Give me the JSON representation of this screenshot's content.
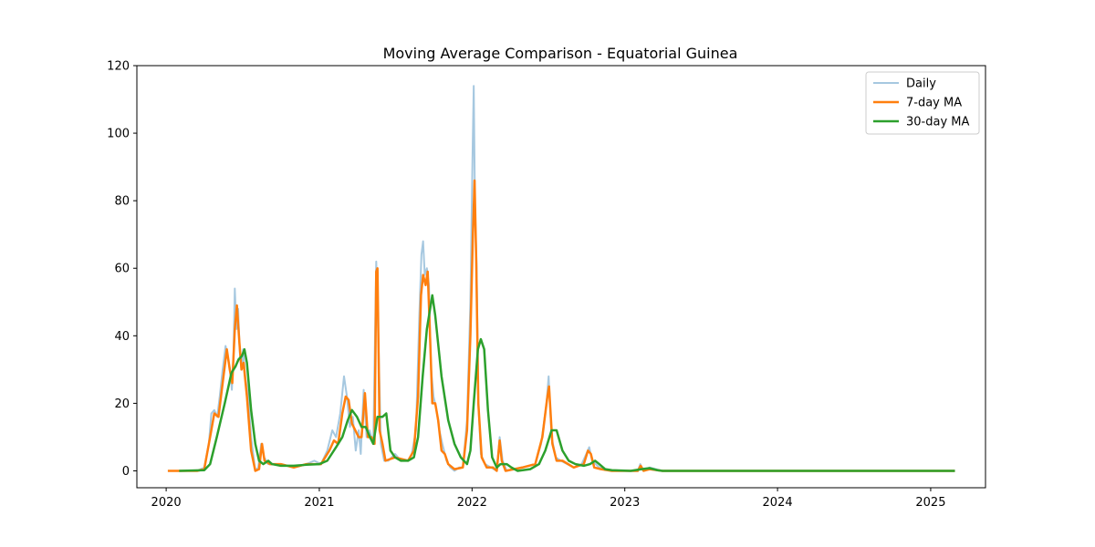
{
  "chart_data": {
    "type": "line",
    "title": "Moving Average Comparison - Equatorial Guinea",
    "xlabel": "",
    "ylabel": "",
    "xlim": [
      "2019-10-23",
      "2025-05-12"
    ],
    "ylim": [
      -5,
      120
    ],
    "x_ticks": [
      "2020",
      "2021",
      "2022",
      "2023",
      "2024",
      "2025"
    ],
    "y_ticks": [
      0,
      20,
      40,
      60,
      80,
      100,
      120
    ],
    "grid": false,
    "legend": {
      "position": "top-right",
      "entries": [
        "Daily",
        "7-day MA",
        "30-day MA"
      ]
    },
    "series": [
      {
        "name": "Daily",
        "color": "#a6c8e0",
        "points": [
          [
            "2020-01-05",
            0
          ],
          [
            "2020-03-15",
            0
          ],
          [
            "2020-04-01",
            1
          ],
          [
            "2020-04-12",
            8
          ],
          [
            "2020-04-18",
            17
          ],
          [
            "2020-04-25",
            18
          ],
          [
            "2020-05-02",
            16
          ],
          [
            "2020-05-08",
            22
          ],
          [
            "2020-05-15",
            30
          ],
          [
            "2020-05-22",
            37
          ],
          [
            "2020-05-28",
            33
          ],
          [
            "2020-06-02",
            30
          ],
          [
            "2020-06-06",
            24
          ],
          [
            "2020-06-10",
            35
          ],
          [
            "2020-06-13",
            54
          ],
          [
            "2020-06-17",
            42
          ],
          [
            "2020-06-21",
            48
          ],
          [
            "2020-06-25",
            35
          ],
          [
            "2020-06-29",
            30
          ],
          [
            "2020-07-03",
            36
          ],
          [
            "2020-07-08",
            28
          ],
          [
            "2020-07-15",
            22
          ],
          [
            "2020-07-22",
            10
          ],
          [
            "2020-08-01",
            0
          ],
          [
            "2020-08-08",
            1
          ],
          [
            "2020-08-15",
            8
          ],
          [
            "2020-08-22",
            4
          ],
          [
            "2020-09-01",
            2
          ],
          [
            "2020-10-01",
            2
          ],
          [
            "2020-11-01",
            1
          ],
          [
            "2020-12-01",
            2
          ],
          [
            "2020-12-20",
            3
          ],
          [
            "2021-01-05",
            2
          ],
          [
            "2021-01-20",
            6
          ],
          [
            "2021-02-01",
            12
          ],
          [
            "2021-02-10",
            10
          ],
          [
            "2021-02-20",
            17
          ],
          [
            "2021-03-01",
            28
          ],
          [
            "2021-03-08",
            22
          ],
          [
            "2021-03-15",
            13
          ],
          [
            "2021-03-22",
            16
          ],
          [
            "2021-03-29",
            6
          ],
          [
            "2021-04-05",
            12
          ],
          [
            "2021-04-10",
            5
          ],
          [
            "2021-04-17",
            24
          ],
          [
            "2021-04-24",
            10
          ],
          [
            "2021-05-01",
            12
          ],
          [
            "2021-05-10",
            8
          ],
          [
            "2021-05-17",
            62
          ],
          [
            "2021-05-22",
            40
          ],
          [
            "2021-05-28",
            8
          ],
          [
            "2021-06-05",
            3
          ],
          [
            "2021-06-15",
            3
          ],
          [
            "2021-07-01",
            5
          ],
          [
            "2021-07-15",
            3
          ],
          [
            "2021-08-01",
            3
          ],
          [
            "2021-08-10",
            5
          ],
          [
            "2021-08-20",
            12
          ],
          [
            "2021-08-28",
            46
          ],
          [
            "2021-09-02",
            64
          ],
          [
            "2021-09-06",
            68
          ],
          [
            "2021-09-10",
            58
          ],
          [
            "2021-09-15",
            60
          ],
          [
            "2021-09-20",
            55
          ],
          [
            "2021-09-25",
            30
          ],
          [
            "2021-10-01",
            22
          ],
          [
            "2021-10-08",
            18
          ],
          [
            "2021-10-15",
            12
          ],
          [
            "2021-10-22",
            8
          ],
          [
            "2021-11-01",
            3
          ],
          [
            "2021-11-10",
            1
          ],
          [
            "2021-11-20",
            0
          ],
          [
            "2021-12-01",
            1
          ],
          [
            "2021-12-10",
            1
          ],
          [
            "2021-12-20",
            15
          ],
          [
            "2021-12-28",
            50
          ],
          [
            "2022-01-02",
            92
          ],
          [
            "2022-01-05",
            114
          ],
          [
            "2022-01-08",
            78
          ],
          [
            "2022-01-12",
            60
          ],
          [
            "2022-01-16",
            20
          ],
          [
            "2022-01-22",
            5
          ],
          [
            "2022-02-01",
            2
          ],
          [
            "2022-02-15",
            1
          ],
          [
            "2022-03-01",
            0
          ],
          [
            "2022-03-08",
            10
          ],
          [
            "2022-03-15",
            3
          ],
          [
            "2022-03-25",
            0
          ],
          [
            "2022-05-01",
            1
          ],
          [
            "2022-06-01",
            2
          ],
          [
            "2022-06-15",
            8
          ],
          [
            "2022-06-28",
            20
          ],
          [
            "2022-07-03",
            28
          ],
          [
            "2022-07-10",
            10
          ],
          [
            "2022-07-20",
            4
          ],
          [
            "2022-08-01",
            3
          ],
          [
            "2022-09-01",
            1
          ],
          [
            "2022-09-20",
            2
          ],
          [
            "2022-10-01",
            5
          ],
          [
            "2022-10-08",
            7
          ],
          [
            "2022-10-15",
            3
          ],
          [
            "2022-11-01",
            1
          ],
          [
            "2022-12-01",
            0
          ],
          [
            "2023-02-01",
            0
          ],
          [
            "2023-02-07",
            2
          ],
          [
            "2023-02-14",
            0
          ],
          [
            "2023-03-01",
            1
          ],
          [
            "2023-04-01",
            0
          ],
          [
            "2025-02-28",
            0
          ]
        ]
      },
      {
        "name": "7-day MA",
        "color": "#ff7f0e",
        "points": [
          [
            "2020-01-05",
            0
          ],
          [
            "2020-03-15",
            0
          ],
          [
            "2020-04-01",
            0.5
          ],
          [
            "2020-04-15",
            10
          ],
          [
            "2020-04-25",
            17
          ],
          [
            "2020-05-05",
            16
          ],
          [
            "2020-05-15",
            26
          ],
          [
            "2020-05-25",
            36
          ],
          [
            "2020-06-01",
            30
          ],
          [
            "2020-06-07",
            26
          ],
          [
            "2020-06-13",
            42
          ],
          [
            "2020-06-18",
            49
          ],
          [
            "2020-06-24",
            38
          ],
          [
            "2020-06-29",
            30
          ],
          [
            "2020-07-04",
            32
          ],
          [
            "2020-07-12",
            22
          ],
          [
            "2020-07-22",
            6
          ],
          [
            "2020-08-01",
            0
          ],
          [
            "2020-08-10",
            0.5
          ],
          [
            "2020-08-17",
            8
          ],
          [
            "2020-08-23",
            3
          ],
          [
            "2020-09-05",
            2
          ],
          [
            "2020-10-01",
            2
          ],
          [
            "2020-11-01",
            1
          ],
          [
            "2020-12-01",
            2
          ],
          [
            "2021-01-05",
            2
          ],
          [
            "2021-01-25",
            6
          ],
          [
            "2021-02-05",
            9
          ],
          [
            "2021-02-15",
            8
          ],
          [
            "2021-02-25",
            17
          ],
          [
            "2021-03-05",
            22
          ],
          [
            "2021-03-12",
            21
          ],
          [
            "2021-03-20",
            14
          ],
          [
            "2021-03-28",
            12
          ],
          [
            "2021-04-05",
            10
          ],
          [
            "2021-04-12",
            10
          ],
          [
            "2021-04-20",
            23
          ],
          [
            "2021-04-27",
            10
          ],
          [
            "2021-05-06",
            10
          ],
          [
            "2021-05-13",
            8
          ],
          [
            "2021-05-17",
            59
          ],
          [
            "2021-05-20",
            60
          ],
          [
            "2021-05-25",
            12
          ],
          [
            "2021-06-01",
            8
          ],
          [
            "2021-06-08",
            3
          ],
          [
            "2021-07-01",
            4
          ],
          [
            "2021-08-01",
            3
          ],
          [
            "2021-08-15",
            6
          ],
          [
            "2021-08-25",
            22
          ],
          [
            "2021-09-01",
            52
          ],
          [
            "2021-09-06",
            58
          ],
          [
            "2021-09-12",
            55
          ],
          [
            "2021-09-17",
            59
          ],
          [
            "2021-09-22",
            42
          ],
          [
            "2021-09-28",
            20
          ],
          [
            "2021-10-05",
            20
          ],
          [
            "2021-10-12",
            15
          ],
          [
            "2021-10-20",
            6
          ],
          [
            "2021-10-28",
            5
          ],
          [
            "2021-11-05",
            2
          ],
          [
            "2021-11-20",
            0.5
          ],
          [
            "2021-12-10",
            1
          ],
          [
            "2021-12-20",
            12
          ],
          [
            "2021-12-28",
            40
          ],
          [
            "2022-01-03",
            70
          ],
          [
            "2022-01-07",
            86
          ],
          [
            "2022-01-11",
            62
          ],
          [
            "2022-01-16",
            20
          ],
          [
            "2022-01-24",
            4
          ],
          [
            "2022-02-05",
            1
          ],
          [
            "2022-02-20",
            1
          ],
          [
            "2022-03-01",
            0
          ],
          [
            "2022-03-08",
            9
          ],
          [
            "2022-03-13",
            3
          ],
          [
            "2022-03-22",
            0
          ],
          [
            "2022-05-01",
            1
          ],
          [
            "2022-06-01",
            2
          ],
          [
            "2022-06-18",
            10
          ],
          [
            "2022-06-30",
            22
          ],
          [
            "2022-07-04",
            25
          ],
          [
            "2022-07-12",
            8
          ],
          [
            "2022-07-22",
            3
          ],
          [
            "2022-08-05",
            3
          ],
          [
            "2022-09-01",
            1
          ],
          [
            "2022-09-25",
            2
          ],
          [
            "2022-10-05",
            6
          ],
          [
            "2022-10-12",
            5
          ],
          [
            "2022-10-20",
            1
          ],
          [
            "2022-11-05",
            0.5
          ],
          [
            "2022-12-01",
            0
          ],
          [
            "2023-02-01",
            0
          ],
          [
            "2023-02-08",
            1.5
          ],
          [
            "2023-02-15",
            0
          ],
          [
            "2023-03-01",
            0.5
          ],
          [
            "2023-04-01",
            0
          ],
          [
            "2025-02-28",
            0
          ]
        ]
      },
      {
        "name": "30-day MA",
        "color": "#2ca02c",
        "points": [
          [
            "2020-02-01",
            0
          ],
          [
            "2020-04-01",
            0.2
          ],
          [
            "2020-04-15",
            2
          ],
          [
            "2020-05-01",
            10
          ],
          [
            "2020-05-20",
            20
          ],
          [
            "2020-06-05",
            29
          ],
          [
            "2020-06-15",
            31
          ],
          [
            "2020-06-22",
            33
          ],
          [
            "2020-06-30",
            34
          ],
          [
            "2020-07-06",
            36
          ],
          [
            "2020-07-12",
            32
          ],
          [
            "2020-07-22",
            18
          ],
          [
            "2020-08-01",
            8
          ],
          [
            "2020-08-10",
            3
          ],
          [
            "2020-08-20",
            2
          ],
          [
            "2020-09-01",
            3
          ],
          [
            "2020-09-10",
            2
          ],
          [
            "2020-10-01",
            1.5
          ],
          [
            "2020-11-01",
            1.5
          ],
          [
            "2020-12-01",
            1.8
          ],
          [
            "2021-01-01",
            2
          ],
          [
            "2021-01-20",
            3
          ],
          [
            "2021-02-10",
            7
          ],
          [
            "2021-02-25",
            10
          ],
          [
            "2021-03-10",
            15
          ],
          [
            "2021-03-20",
            18
          ],
          [
            "2021-04-01",
            16
          ],
          [
            "2021-04-12",
            13
          ],
          [
            "2021-04-22",
            13
          ],
          [
            "2021-05-02",
            10
          ],
          [
            "2021-05-10",
            8
          ],
          [
            "2021-05-20",
            16
          ],
          [
            "2021-06-01",
            16
          ],
          [
            "2021-06-10",
            17
          ],
          [
            "2021-06-20",
            6
          ],
          [
            "2021-07-01",
            4
          ],
          [
            "2021-07-15",
            3
          ],
          [
            "2021-08-01",
            3
          ],
          [
            "2021-08-15",
            4
          ],
          [
            "2021-08-25",
            10
          ],
          [
            "2021-09-05",
            28
          ],
          [
            "2021-09-15",
            42
          ],
          [
            "2021-09-28",
            52
          ],
          [
            "2021-10-05",
            46
          ],
          [
            "2021-10-20",
            28
          ],
          [
            "2021-11-05",
            15
          ],
          [
            "2021-11-20",
            8
          ],
          [
            "2021-12-05",
            4
          ],
          [
            "2021-12-20",
            2
          ],
          [
            "2021-12-28",
            6
          ],
          [
            "2022-01-05",
            20
          ],
          [
            "2022-01-15",
            36
          ],
          [
            "2022-01-22",
            39
          ],
          [
            "2022-01-30",
            36
          ],
          [
            "2022-02-08",
            18
          ],
          [
            "2022-02-18",
            4
          ],
          [
            "2022-03-01",
            1
          ],
          [
            "2022-03-10",
            2
          ],
          [
            "2022-03-25",
            2
          ],
          [
            "2022-04-05",
            1
          ],
          [
            "2022-04-20",
            0
          ],
          [
            "2022-05-20",
            0.5
          ],
          [
            "2022-06-10",
            2
          ],
          [
            "2022-06-25",
            6
          ],
          [
            "2022-07-10",
            12
          ],
          [
            "2022-07-22",
            12
          ],
          [
            "2022-08-05",
            6
          ],
          [
            "2022-08-20",
            3
          ],
          [
            "2022-09-05",
            2
          ],
          [
            "2022-09-25",
            1.5
          ],
          [
            "2022-10-10",
            2
          ],
          [
            "2022-10-22",
            3
          ],
          [
            "2022-11-01",
            2
          ],
          [
            "2022-11-15",
            0.5
          ],
          [
            "2022-12-01",
            0.2
          ],
          [
            "2023-01-15",
            0
          ],
          [
            "2023-02-10",
            0.5
          ],
          [
            "2023-03-01",
            0.8
          ],
          [
            "2023-03-20",
            0.2
          ],
          [
            "2023-04-01",
            0
          ],
          [
            "2025-02-28",
            0
          ]
        ]
      }
    ]
  }
}
